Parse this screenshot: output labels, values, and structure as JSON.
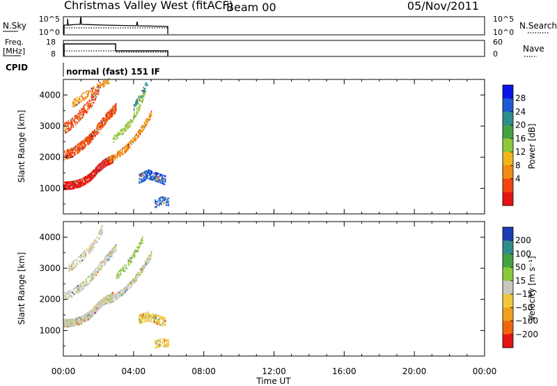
{
  "header": {
    "station": "Christmas Valley West (fitACF)",
    "beam": "Beam 00",
    "date": "05/Nov/2011"
  },
  "strips": {
    "nsky_label": "N.Sky",
    "nsky_ticks": [
      "10^5",
      "10^0"
    ],
    "nsearch_label": "N.Search",
    "nsearch_ticks": [
      "10^5",
      "10^0"
    ],
    "freq_label_1": "Freq.",
    "freq_label_2": "[MHz]",
    "freq_ticks": [
      "18",
      "8"
    ],
    "nave_label": "Nave",
    "nave_ticks": [
      "60",
      "0"
    ],
    "cpid_label": "CPID",
    "cpid_value": "normal (fast) 151 IF"
  },
  "chart_data": [
    {
      "type": "heatmap",
      "name": "power",
      "ylabel": "Slant Range [km]",
      "yticks": [
        1000,
        2000,
        3000,
        4000
      ],
      "ylim": [
        180,
        4500
      ],
      "xlim": [
        0,
        24
      ],
      "colorbar_label": "Power [dB]",
      "colorbar_ticks": [
        "4",
        "8",
        "12",
        "16",
        "20",
        "24",
        "28"
      ],
      "colorbar_colors": [
        "#0a14e6",
        "#1e5ad2",
        "#2f8c8c",
        "#46a046",
        "#8cc83c",
        "#f0b41e",
        "#f08c14",
        "#f0460f",
        "#e61414"
      ],
      "echo_bands": [
        {
          "t": [
            0.0,
            0.5,
            1.0,
            1.5,
            2.0,
            2.3,
            2.8
          ],
          "r": [
            1080,
            1100,
            1180,
            1350,
            1650,
            1800,
            1950
          ],
          "width": 260,
          "color": "#e61414",
          "density": 0.85
        },
        {
          "t": [
            0.0,
            0.5,
            1.0,
            1.5,
            2.0,
            2.5,
            3.0
          ],
          "r": [
            2050,
            2150,
            2350,
            2600,
            2950,
            3300,
            3600
          ],
          "width": 300,
          "color": "#f0460f",
          "density": 0.7
        },
        {
          "t": [
            0.0,
            0.5,
            1.0,
            1.5,
            2.0
          ],
          "r": [
            2900,
            3100,
            3400,
            3700,
            4200
          ],
          "width": 350,
          "color": "#f0460f",
          "density": 0.45
        },
        {
          "t": [
            0.5,
            1.0,
            1.6,
            2.2,
            2.6
          ],
          "r": [
            3700,
            3900,
            4100,
            4350,
            4500
          ],
          "width": 250,
          "color": "#f08c14",
          "density": 0.4
        },
        {
          "t": [
            2.6,
            3.0,
            3.5,
            4.0,
            4.5,
            5.0
          ],
          "r": [
            1900,
            2050,
            2250,
            2550,
            2950,
            3400
          ],
          "width": 220,
          "color": "#f08c14",
          "density": 0.65
        },
        {
          "t": [
            2.8,
            3.3,
            3.8,
            4.3,
            4.7
          ],
          "r": [
            2550,
            2800,
            3100,
            3600,
            4200
          ],
          "width": 200,
          "color": "#8cc83c",
          "density": 0.5
        },
        {
          "t": [
            4.0,
            4.5,
            4.8
          ],
          "r": [
            3600,
            4100,
            4450
          ],
          "width": 220,
          "color": "#2f8c8c",
          "density": 0.45
        },
        {
          "t": [
            4.3,
            4.8,
            5.3,
            5.8
          ],
          "r": [
            1300,
            1450,
            1350,
            1250
          ],
          "width": 300,
          "color": "#1e5ad2",
          "density": 0.65
        },
        {
          "t": [
            5.2,
            5.6,
            6.0
          ],
          "r": [
            500,
            600,
            550
          ],
          "width": 250,
          "color": "#1e5ad2",
          "density": 0.55
        }
      ]
    },
    {
      "type": "heatmap",
      "name": "velocity",
      "ylabel": "Slant Range [km]",
      "yticks": [
        1000,
        2000,
        3000,
        4000
      ],
      "ylim": [
        180,
        4500
      ],
      "xlim": [
        0,
        24
      ],
      "xlabel": "Time UT",
      "xticks": [
        "00:00",
        "04:00",
        "08:00",
        "12:00",
        "16:00",
        "20:00",
        "00:00"
      ],
      "colorbar_label": "Velocity [m s⁻¹]",
      "colorbar_ticks": [
        "200",
        "100",
        "50",
        "15",
        "−15",
        "−50",
        "−100",
        "−200"
      ],
      "colorbar_colors": [
        "#1e3cb4",
        "#2f8c8c",
        "#46a046",
        "#8cc83c",
        "#c8c8be",
        "#f0c83c",
        "#f0a01e",
        "#f0640f",
        "#e61414"
      ],
      "echo_bands": [
        {
          "t": [
            0.0,
            0.5,
            1.0,
            1.5,
            2.0,
            2.3,
            2.8
          ],
          "r": [
            1230,
            1250,
            1330,
            1500,
            1800,
            1950,
            2100
          ],
          "width": 260,
          "color": "#c8c8be",
          "density": 0.85
        },
        {
          "t": [
            0.0,
            0.5,
            1.0,
            1.5,
            2.0,
            2.5,
            3.0
          ],
          "r": [
            2100,
            2200,
            2400,
            2650,
            3000,
            3350,
            3650
          ],
          "width": 260,
          "color": "#c8c8be",
          "density": 0.55
        },
        {
          "t": [
            0.3,
            0.8,
            1.3,
            1.8,
            2.2
          ],
          "r": [
            3000,
            3200,
            3500,
            3800,
            4250
          ],
          "width": 250,
          "color": "#c8c8be",
          "density": 0.45
        },
        {
          "t": [
            2.6,
            3.0,
            3.5,
            4.0,
            4.5,
            5.0
          ],
          "r": [
            1950,
            2100,
            2300,
            2600,
            3000,
            3450
          ],
          "width": 220,
          "color": "#c8c8be",
          "density": 0.7
        },
        {
          "t": [
            3.0,
            3.5,
            4.0,
            4.5
          ],
          "r": [
            2700,
            3000,
            3400,
            3900
          ],
          "width": 180,
          "color": "#8cc83c",
          "density": 0.45
        },
        {
          "t": [
            4.3,
            4.8,
            5.3,
            5.8
          ],
          "r": [
            1350,
            1450,
            1350,
            1250
          ],
          "width": 300,
          "color": "#f0c83c",
          "density": 0.6
        },
        {
          "t": [
            5.2,
            5.6,
            6.0
          ],
          "r": [
            550,
            620,
            560
          ],
          "width": 250,
          "color": "#f0c83c",
          "density": 0.55
        }
      ]
    }
  ]
}
